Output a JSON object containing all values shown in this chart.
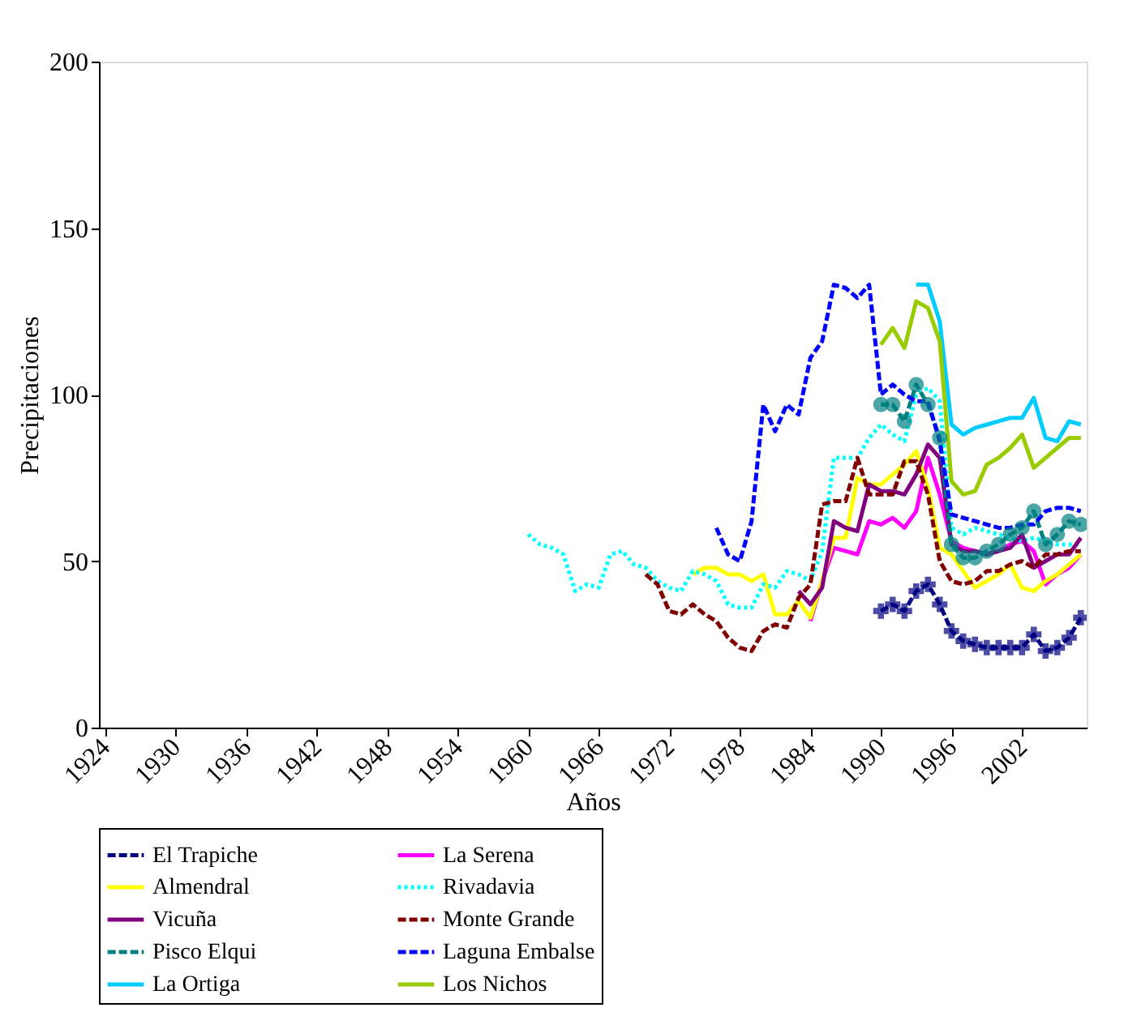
{
  "chart_data": {
    "type": "line",
    "xlabel": "Años",
    "ylabel": "Precipitaciones",
    "xlim": [
      1923.5,
      2007.5
    ],
    "xticks": [
      1924,
      1930,
      1936,
      1942,
      1948,
      1954,
      1960,
      1966,
      1972,
      1978,
      1984,
      1990,
      1996,
      2002
    ],
    "ylim": [
      0,
      200
    ],
    "yticks": [
      0,
      50,
      100,
      150,
      200
    ],
    "grid": false,
    "legend": "bottom",
    "series": [
      {
        "name": "El Trapiche",
        "color": "#000080",
        "line_style": "dashed",
        "marker": "cross",
        "x": [
          1990,
          1991,
          1992,
          1993,
          1994,
          1995,
          1996,
          1997,
          1998,
          1999,
          2000,
          2001,
          2002,
          2003,
          2004,
          2005,
          2006,
          2007
        ],
        "values": [
          35,
          37,
          35,
          41,
          43,
          37,
          29,
          26,
          25,
          24,
          24,
          24,
          24,
          28,
          23,
          24,
          27,
          33
        ]
      },
      {
        "name": "La Serena",
        "color": "#ff00ff",
        "line_style": "solid",
        "marker": "none",
        "x": [
          1984,
          1985,
          1986,
          1987,
          1988,
          1989,
          1990,
          1991,
          1992,
          1993,
          1994,
          1995,
          1996,
          1997,
          1998,
          1999,
          2000,
          2001,
          2002,
          2003,
          2004,
          2005,
          2006,
          2007
        ],
        "values": [
          32,
          44,
          54,
          53,
          52,
          62,
          61,
          63,
          60,
          65,
          81,
          70,
          56,
          54,
          53,
          52,
          53,
          55,
          56,
          53,
          43,
          46,
          48,
          52
        ]
      },
      {
        "name": "Almendral",
        "color": "#ffff00",
        "line_style": "solid",
        "marker": "none",
        "x": [
          1974,
          1975,
          1976,
          1977,
          1978,
          1979,
          1980,
          1981,
          1982,
          1983,
          1984,
          1985,
          1986,
          1987,
          1988,
          1989,
          1990,
          1991,
          1992,
          1993,
          1994,
          1995,
          1996,
          1997,
          1998,
          1999,
          2000,
          2001,
          2002,
          2003,
          2004,
          2005,
          2006,
          2007
        ],
        "values": [
          46,
          48,
          48,
          46,
          46,
          44,
          46,
          34,
          34,
          38,
          33,
          44,
          57,
          57,
          75,
          73,
          73,
          76,
          79,
          83,
          72,
          54,
          52,
          47,
          42,
          44,
          46,
          49,
          42,
          41,
          44,
          46,
          49,
          52
        ]
      },
      {
        "name": "Rivadavia",
        "color": "#00ffff",
        "line_style": "dotted",
        "marker": "none",
        "x": [
          1960,
          1961,
          1962,
          1963,
          1964,
          1965,
          1966,
          1967,
          1968,
          1969,
          1970,
          1971,
          1972,
          1973,
          1974,
          1975,
          1976,
          1977,
          1978,
          1979,
          1980,
          1981,
          1982,
          1983,
          1984,
          1985,
          1986,
          1987,
          1988,
          1989,
          1990,
          1991,
          1992,
          1993,
          1994,
          1995,
          1996,
          1997,
          1998,
          1999,
          2000,
          2001,
          2002,
          2003,
          2004,
          2005,
          2006,
          2007
        ],
        "values": [
          58,
          55,
          54,
          52,
          41,
          43,
          42,
          52,
          53,
          49,
          48,
          44,
          42,
          41,
          47,
          46,
          44,
          37,
          36,
          36,
          43,
          42,
          47,
          46,
          44,
          53,
          81,
          81,
          81,
          87,
          91,
          88,
          86,
          100,
          102,
          98,
          60,
          58,
          60,
          59,
          58,
          57,
          56,
          57,
          56,
          55,
          55,
          55
        ]
      },
      {
        "name": "Vicuña",
        "color": "#800080",
        "line_style": "solid",
        "marker": "none",
        "x": [
          1983,
          1984,
          1985,
          1986,
          1987,
          1988,
          1989,
          1990,
          1991,
          1992,
          1993,
          1994,
          1995,
          1996,
          1997,
          1998,
          1999,
          2000,
          2001,
          2002,
          2003,
          2004,
          2005,
          2006,
          2007
        ],
        "values": [
          41,
          37,
          42,
          62,
          60,
          59,
          73,
          71,
          71,
          70,
          76,
          85,
          81,
          55,
          53,
          53,
          52,
          53,
          54,
          58,
          48,
          50,
          52,
          52,
          57
        ]
      },
      {
        "name": "Monte Grande",
        "color": "#800000",
        "line_style": "dashed",
        "marker": "none",
        "x": [
          1970,
          1971,
          1972,
          1973,
          1974,
          1975,
          1976,
          1977,
          1978,
          1979,
          1980,
          1981,
          1982,
          1983,
          1984,
          1985,
          1986,
          1987,
          1988,
          1989,
          1990,
          1991,
          1992,
          1993,
          1994,
          1995,
          1996,
          1997,
          1998,
          1999,
          2000,
          2001,
          2002,
          2003,
          2004,
          2005,
          2006,
          2007
        ],
        "values": [
          46,
          43,
          35,
          34,
          37,
          34,
          32,
          27,
          24,
          23,
          29,
          31,
          30,
          39,
          43,
          67,
          68,
          68,
          81,
          70,
          70,
          70,
          80,
          80,
          70,
          50,
          44,
          43,
          44,
          47,
          47,
          49,
          50,
          48,
          52,
          52,
          53,
          53
        ]
      },
      {
        "name": "Pisco Elqui",
        "color": "#008080",
        "line_style": "dashed",
        "marker": "circle",
        "x": [
          1990,
          1991,
          1992,
          1993,
          1994,
          1995,
          1996,
          1997,
          1998,
          1999,
          2000,
          2001,
          2002,
          2003,
          2004,
          2005,
          2006,
          2007
        ],
        "values": [
          97,
          97,
          92,
          103,
          97,
          87,
          55,
          51,
          51,
          53,
          55,
          58,
          60,
          65,
          55,
          58,
          62,
          61
        ]
      },
      {
        "name": "Laguna Embalse",
        "color": "#0000ff",
        "line_style": "dashed",
        "marker": "none",
        "x": [
          1976,
          1977,
          1978,
          1979,
          1980,
          1981,
          1982,
          1983,
          1984,
          1985,
          1986,
          1987,
          1988,
          1989,
          1990,
          1991,
          1992,
          1993,
          1994,
          1995,
          1996,
          1997,
          1998,
          1999,
          2000,
          2001,
          2002,
          2003,
          2004,
          2005,
          2006,
          2007
        ],
        "values": [
          60,
          52,
          50,
          62,
          97,
          89,
          97,
          94,
          111,
          116,
          133,
          132,
          129,
          133,
          100,
          103,
          100,
          98,
          98,
          86,
          64,
          63,
          62,
          61,
          60,
          60,
          61,
          61,
          65,
          66,
          66,
          65
        ]
      },
      {
        "name": "La Ortiga",
        "color": "#00ccff",
        "line_style": "solid",
        "marker": "none",
        "x": [
          1993,
          1994,
          1995,
          1996,
          1997,
          1998,
          1999,
          2000,
          2001,
          2002,
          2003,
          2004,
          2005,
          2006,
          2007
        ],
        "values": [
          133,
          133,
          122,
          91,
          88,
          90,
          91,
          92,
          93,
          93,
          99,
          87,
          86,
          92,
          91
        ]
      },
      {
        "name": "Los Nichos",
        "color": "#99cc00",
        "line_style": "solid",
        "marker": "none",
        "x": [
          1990,
          1991,
          1992,
          1993,
          1994,
          1995,
          1996,
          1997,
          1998,
          1999,
          2000,
          2001,
          2002,
          2003,
          2004,
          2005,
          2006,
          2007
        ],
        "values": [
          115,
          120,
          114,
          128,
          126,
          116,
          74,
          70,
          71,
          79,
          81,
          84,
          88,
          78,
          81,
          84,
          87,
          87
        ]
      }
    ]
  }
}
